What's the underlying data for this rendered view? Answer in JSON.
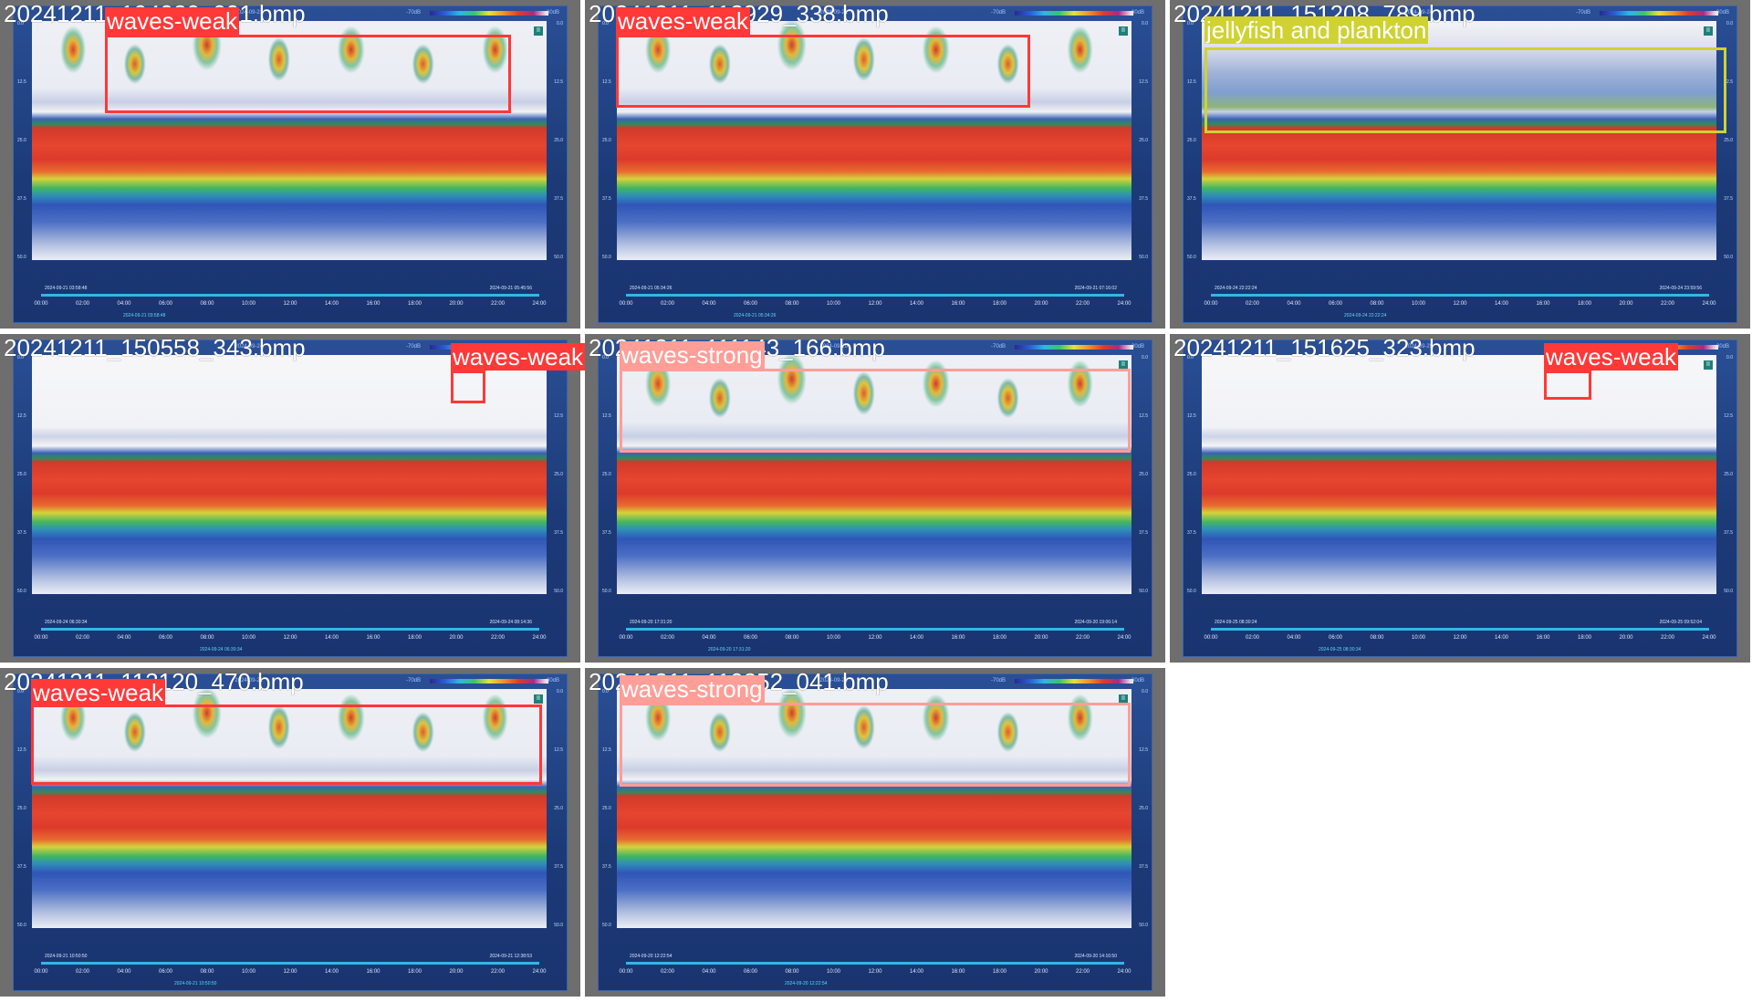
{
  "grid": [
    {
      "filename": "20241211_104920_091.bmp",
      "date_label": "2024-09-21",
      "range_lo": "-70dB",
      "range_hi": "30dB",
      "yticks": [
        "0.0",
        "12.5",
        "25.0",
        "37.5",
        "50.0"
      ],
      "hours": [
        "00:00",
        "02:00",
        "04:00",
        "06:00",
        "08:00",
        "10:00",
        "12:00",
        "14:00",
        "16:00",
        "18:00",
        "20:00",
        "22:00",
        "24:00"
      ],
      "ts_left": "2024-09-21 03:58:48",
      "ts_right": "2024-09-21 05:45:56",
      "ts_cursor": "2024-09-21 03:58:48",
      "plot_style": "strong-top",
      "detection": {
        "label": "waves-weak",
        "class": "weak"
      }
    },
    {
      "filename": "20241211_112929_338.bmp",
      "date_label": "2024-09-21",
      "range_lo": "-70dB",
      "range_hi": "30dB",
      "yticks": [
        "0.0",
        "12.5",
        "25.0",
        "37.5",
        "50.0"
      ],
      "hours": [
        "00:00",
        "02:00",
        "04:00",
        "06:00",
        "08:00",
        "10:00",
        "12:00",
        "14:00",
        "16:00",
        "18:00",
        "20:00",
        "22:00",
        "24:00"
      ],
      "ts_left": "2024-09-21 05:34:26",
      "ts_right": "2024-09-21 07:16:02",
      "ts_cursor": "2024-09-21 05:34:26",
      "plot_style": "strong-top",
      "detection": {
        "label": "waves-weak",
        "class": "weak"
      }
    },
    {
      "filename": "20241211_151208_789.bmp",
      "date_label": "2024-09-24",
      "range_lo": "-70dB",
      "range_hi": "30dB",
      "yticks": [
        "0.0",
        "12.5",
        "25.0",
        "37.5",
        "50.0"
      ],
      "hours": [
        "00:00",
        "02:00",
        "04:00",
        "06:00",
        "08:00",
        "10:00",
        "12:00",
        "14:00",
        "16:00",
        "18:00",
        "20:00",
        "22:00",
        "24:00"
      ],
      "ts_left": "2024-09-24 22:22:24",
      "ts_right": "2024-09-24 23:59:56",
      "ts_cursor": "2024-09-24 22:22:24",
      "plot_style": "plankton-top",
      "detection": {
        "label": "jellyfish and plankton",
        "class": "jelly"
      }
    },
    {
      "filename": "20241211_150558_343.bmp",
      "date_label": "2024-09-24",
      "range_lo": "-70dB",
      "range_hi": "30dB",
      "yticks": [
        "0.0",
        "12.5",
        "25.0",
        "37.5",
        "50.0"
      ],
      "hours": [
        "00:00",
        "02:00",
        "04:00",
        "06:00",
        "08:00",
        "10:00",
        "12:00",
        "14:00",
        "16:00",
        "18:00",
        "20:00",
        "22:00",
        "24:00"
      ],
      "ts_left": "2024-09-24 06:30:34",
      "ts_right": "2024-09-24 08:14:36",
      "ts_cursor": "2024-09-24 06:30:34",
      "plot_style": "weak-top",
      "detection": {
        "label": "waves-weak",
        "class": "weak"
      }
    },
    {
      "filename": "20241211_111143_166.bmp",
      "date_label": "2024-09-20",
      "range_lo": "-70dB",
      "range_hi": "30dB",
      "yticks": [
        "0.0",
        "12.5",
        "25.0",
        "37.5",
        "50.0"
      ],
      "hours": [
        "00:00",
        "02:00",
        "04:00",
        "06:00",
        "08:00",
        "10:00",
        "12:00",
        "14:00",
        "16:00",
        "18:00",
        "20:00",
        "22:00",
        "24:00"
      ],
      "ts_left": "2024-09-20 17:31:20",
      "ts_right": "2024-09-20 19:06:14",
      "ts_cursor": "2024-09-20 17:31:20",
      "plot_style": "strong-top",
      "detection": {
        "label": "waves-strong",
        "class": "strong"
      }
    },
    {
      "filename": "20241211_151625_323.bmp",
      "date_label": "2024-09-25",
      "range_lo": "-70dB",
      "range_hi": "30dB",
      "yticks": [
        "0.0",
        "12.5",
        "25.0",
        "37.5",
        "50.0"
      ],
      "hours": [
        "00:00",
        "02:00",
        "04:00",
        "06:00",
        "08:00",
        "10:00",
        "12:00",
        "14:00",
        "16:00",
        "18:00",
        "20:00",
        "22:00",
        "24:00"
      ],
      "ts_left": "2024-09-25 08:30:24",
      "ts_right": "2024-09-25 09:52:04",
      "ts_cursor": "2024-09-25 08:30:34",
      "plot_style": "weak-top",
      "detection": {
        "label": "waves-weak",
        "class": "weak"
      }
    },
    {
      "filename": "20241211_113120_470.bmp",
      "date_label": "2024-09-21",
      "range_lo": "-70dB",
      "range_hi": "30dB",
      "yticks": [
        "0.0",
        "12.5",
        "25.0",
        "37.5",
        "50.0"
      ],
      "hours": [
        "00:00",
        "02:00",
        "04:00",
        "06:00",
        "08:00",
        "10:00",
        "12:00",
        "14:00",
        "16:00",
        "18:00",
        "20:00",
        "22:00",
        "24:00"
      ],
      "ts_left": "2024-09-21 10:50:50",
      "ts_right": "2024-09-21 12:38:53",
      "ts_cursor": "2024-09-21 10:50:50",
      "plot_style": "strong-top",
      "detection": {
        "label": "waves-weak",
        "class": "weak"
      }
    },
    {
      "filename": "20241211_110252_041.bmp",
      "date_label": "2024-09-20",
      "range_lo": "-70dB",
      "range_hi": "30dB",
      "yticks": [
        "0.0",
        "12.5",
        "25.0",
        "37.5",
        "50.0"
      ],
      "hours": [
        "00:00",
        "02:00",
        "04:00",
        "06:00",
        "08:00",
        "10:00",
        "12:00",
        "14:00",
        "16:00",
        "18:00",
        "20:00",
        "22:00",
        "24:00"
      ],
      "ts_left": "2024-09-20 12:22:54",
      "ts_right": "2024-09-20 14:16:50",
      "ts_cursor": "2024-09-20 12:22:54",
      "plot_style": "strong-top",
      "detection": {
        "label": "waves-strong",
        "class": "strong"
      }
    }
  ]
}
